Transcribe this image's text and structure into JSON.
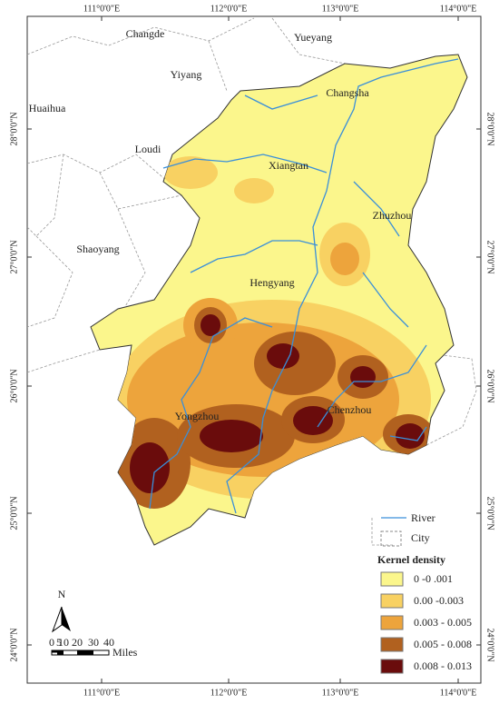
{
  "map": {
    "graticule": {
      "longitudes": [
        "111°0'0\"E",
        "112°0'0\"E",
        "113°0'0\"E",
        "114°0'0\"E"
      ],
      "latitudes": [
        "28°0'0\"N",
        "27°0'0\"N",
        "26°0'0\"N",
        "25°0'0\"N",
        "24°0'0\"N"
      ]
    },
    "cities": [
      "Changde",
      "Yueyang",
      "Yiyang",
      "Changsha",
      "Huaihua",
      "Loudi",
      "Xiangtan",
      "Zhuzhou",
      "Shaoyang",
      "Hengyang",
      "Yongzhou",
      "Chenzhou"
    ],
    "legend": {
      "river": "River",
      "city": "City",
      "title": "Kernel density",
      "classes": [
        {
          "label": "0 -0 .001",
          "color": "#fbf68c"
        },
        {
          "label": "0.00 -0.003",
          "color": "#f8d162"
        },
        {
          "label": "0.003 - 0.005",
          "color": "#eda43c"
        },
        {
          "label": "0.005 - 0.008",
          "color": "#b1611f"
        },
        {
          "label": "0.008 - 0.013",
          "color": "#6a0c0c"
        }
      ]
    },
    "north": "N",
    "scale_bar": {
      "ticks": [
        0,
        5,
        10,
        20,
        30,
        40
      ],
      "unit": "Miles"
    }
  }
}
